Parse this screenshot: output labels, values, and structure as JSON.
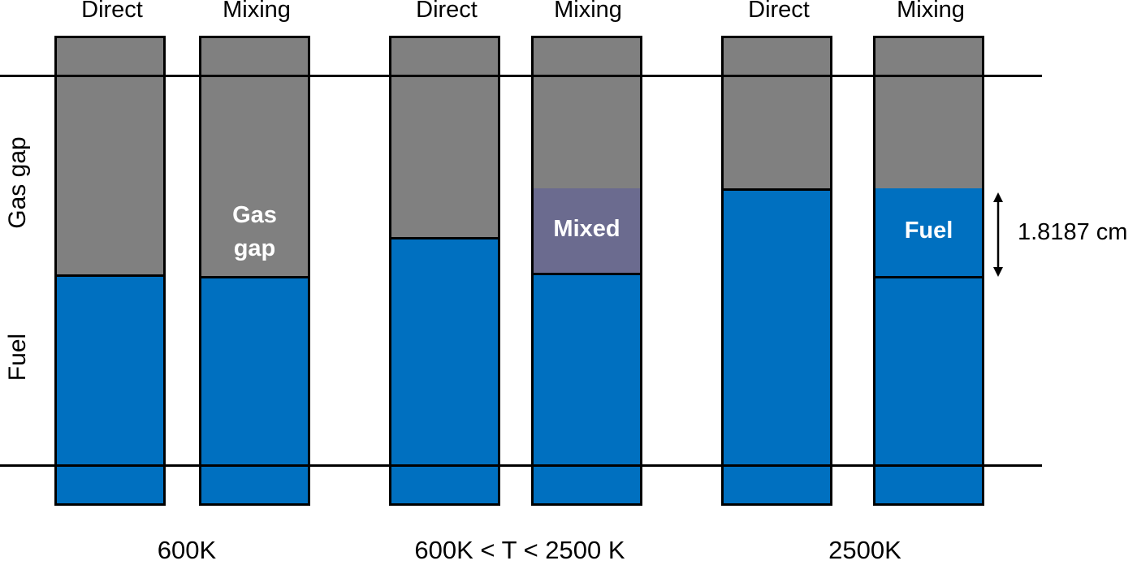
{
  "columns": [
    {
      "header": "Direct",
      "inner": ""
    },
    {
      "header": "Mixing",
      "inner_lines": [
        "Gas",
        "gap"
      ]
    },
    {
      "header": "Direct",
      "inner": ""
    },
    {
      "header": "Mixing",
      "inner": "Mixed"
    },
    {
      "header": "Direct",
      "inner": ""
    },
    {
      "header": "Mixing",
      "inner": "Fuel"
    }
  ],
  "groups": [
    "600K",
    "600K < T < 2500 K",
    "2500K"
  ],
  "side_labels": {
    "gas_gap": "Gas gap",
    "fuel": "Fuel"
  },
  "dimension": {
    "label": "1.8187 cm"
  },
  "colors": {
    "gas": "#808080",
    "fuel": "#0070c0",
    "mixed": "#6b6b8f"
  }
}
